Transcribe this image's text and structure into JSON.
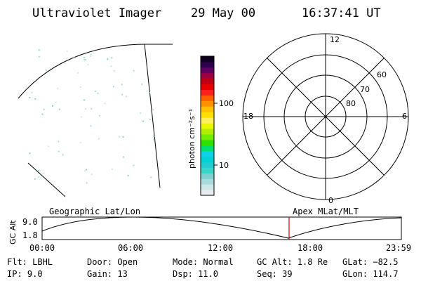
{
  "header": {
    "instrument": "Ultraviolet Imager",
    "date": "29 May 00",
    "time": "16:37:41 UT"
  },
  "colorbar": {
    "unit_label": "photon cm⁻²s⁻¹",
    "ticks": [
      "100",
      "10"
    ],
    "colors": [
      "#e8eef0",
      "#cfe6ea",
      "#a8dcdc",
      "#7ecfcf",
      "#3ad6c8",
      "#22ccd0",
      "#00d2d8",
      "#10d0e8",
      "#00e070",
      "#30e000",
      "#70ee00",
      "#b0f000",
      "#e8f800",
      "#fff060",
      "#ffe000",
      "#ffc000",
      "#ff9000",
      "#ff6000",
      "#ff2020",
      "#e80000",
      "#c00010",
      "#a00040",
      "#600060",
      "#300050",
      "#100020"
    ]
  },
  "polar_plot": {
    "labels": {
      "top": "12",
      "left": "18",
      "right": "6",
      "bottom": "0",
      "lat60": "60",
      "lat70": "70",
      "lat80": "80"
    }
  },
  "altitude_plot": {
    "y_title": "GC Alt",
    "y_ticks": [
      "9.0",
      "1.8"
    ],
    "left_caption": "Geographic Lat/Lon",
    "right_caption": "Apex MLat/MLT",
    "x_ticks": [
      "00:00",
      "06:00",
      "12:00",
      "18:00",
      "23:59"
    ],
    "marker_color": "#cc0000"
  },
  "status": {
    "flt": "Flt: LBHL",
    "ip": "IP:  9.0",
    "door": "Door: Open",
    "gain": "Gain: 13",
    "mode": "Mode: Normal",
    "dsp": "Dsp:   11.0",
    "gc_alt": "GC Alt: 1.8 Re",
    "seq": "Seq: 39",
    "glat": "GLat: −82.5",
    "glon": "GLon: 114.7"
  }
}
